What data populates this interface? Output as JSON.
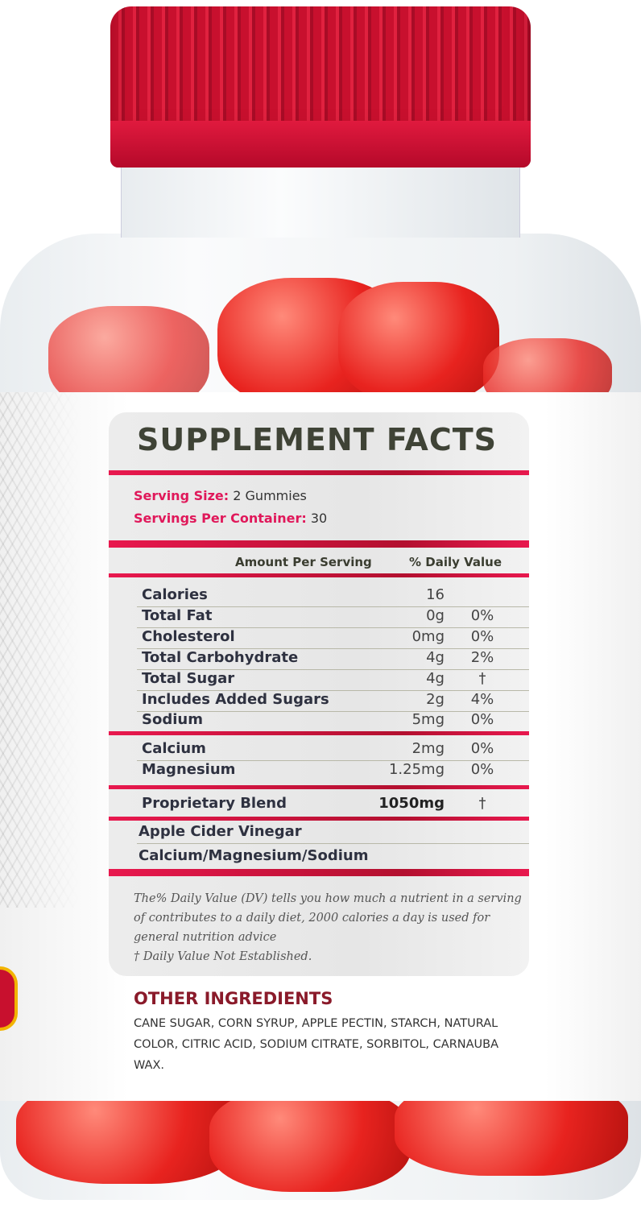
{
  "panel_title": "SUPPLEMENT FACTS",
  "serving": {
    "size_label": "Serving Size:",
    "size_value": "2 Gummies",
    "per_container_label": "Servings Per Container:",
    "per_container_value": "30"
  },
  "header": {
    "amount": "Amount Per Serving",
    "dv": "% Daily Value"
  },
  "rows": [
    {
      "name": "Calories",
      "amount": "16",
      "dv": ""
    },
    {
      "name": "Total Fat",
      "amount": "0g",
      "dv": "0%"
    },
    {
      "name": "Cholesterol",
      "amount": "0mg",
      "dv": "0%"
    },
    {
      "name": "Total Carbohydrate",
      "amount": "4g",
      "dv": "2%"
    },
    {
      "name": "Total Sugar",
      "amount": "4g",
      "dv": "†"
    },
    {
      "name": "Includes Added Sugars",
      "amount": "2g",
      "dv": "4%"
    },
    {
      "name": "Sodium",
      "amount": "5mg",
      "dv": "0%"
    },
    {
      "name": "Calcium",
      "amount": "2mg",
      "dv": "0%"
    },
    {
      "name": "Magnesium",
      "amount": "1.25mg",
      "dv": "0%"
    },
    {
      "name": "Proprietary Blend",
      "amount": "1050mg",
      "dv": "†"
    },
    {
      "name": "Apple Cider Vinegar",
      "amount": "",
      "dv": ""
    },
    {
      "name": "Calcium/Magnesium/Sodium",
      "amount": "",
      "dv": ""
    }
  ],
  "footnote": "The% Daily Value (DV) tells you how much a nutrient in a serving of contributes to a daily diet, 2000 calories a day is used for general nutrition advice",
  "dagger_note": "† Daily Value Not Established.",
  "other_ingredients": {
    "heading": "OTHER INGREDIENTS",
    "text": "CANE SUGAR, CORN SYRUP, APPLE PECTIN, STARCH, NATURAL COLOR, CITRIC ACID, SODIUM CITRATE, SORBITOL, CARNAUBA WAX."
  },
  "colors": {
    "cap": "#c8102e",
    "accent": "#e0185a",
    "gummy": "#e8231f"
  }
}
